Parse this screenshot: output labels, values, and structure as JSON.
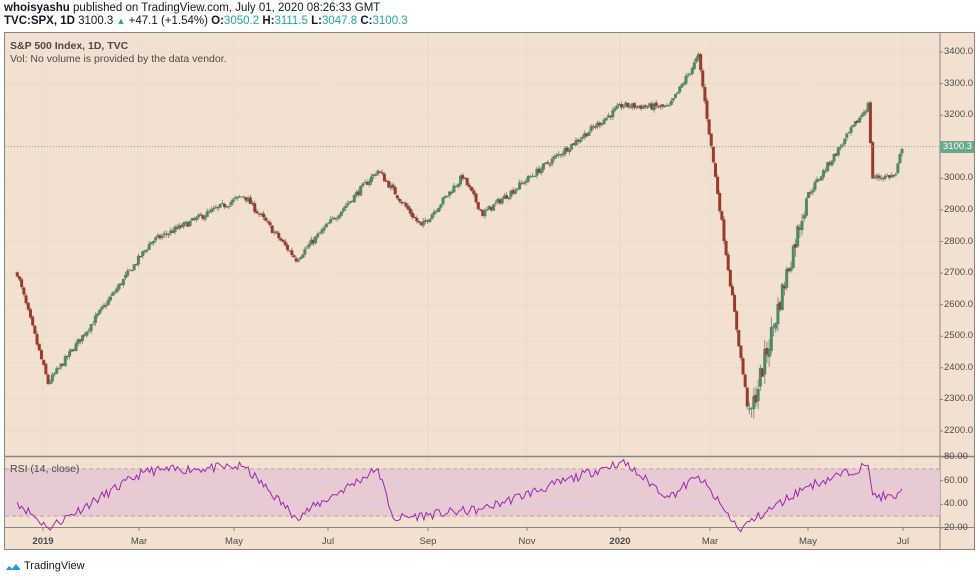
{
  "header": {
    "author": "whoisyashu",
    "published": "published on TradingView.com, July 01, 2020 08:26:33 GMT",
    "symbol": "TVC:SPX, 1D",
    "last": "3100.3",
    "change_arrow": "▲",
    "change": "+47.1 (+1.54%)",
    "o_label": "O:",
    "o": "3050.2",
    "h_label": "H:",
    "h": "3111.5",
    "l_label": "L:",
    "l": "3047.8",
    "c_label": "C:",
    "c": "3100.3"
  },
  "legend": {
    "title": "S&P 500 Index, 1D, TVC",
    "volume_note": "Vol: No volume is provided by the data vendor.",
    "rsi_label": "RSI (14, close)"
  },
  "last_price_label": "3100.3",
  "footer": {
    "brand": "TradingView"
  },
  "colors": {
    "background": "#f2e1d0",
    "up": "#4e8a63",
    "down": "#9c3a2a",
    "rsi_line": "#9c27b0",
    "rsi_band": "#e6c6d3",
    "last_price": "#6aa88a"
  },
  "chart_data": [
    {
      "type": "candlestick",
      "title": "S&P 500 Index, 1D, TVC",
      "symbol": "TVC:SPX",
      "interval": "1D",
      "xlabel": "",
      "ylabel": "",
      "ylim": [
        2170,
        3460
      ],
      "y_ticks": [
        "3400.0",
        "3300.0",
        "3200.0",
        "3100.0",
        "3000.0",
        "2900.0",
        "2800.0",
        "2700.0",
        "2600.0",
        "2500.0",
        "2400.0",
        "2300.0",
        "2200.0"
      ],
      "x_ticks": [
        "2019",
        "Mar",
        "May",
        "Jul",
        "Sep",
        "Nov",
        "2020",
        "Mar",
        "May",
        "Jul"
      ],
      "last_price": 3100.3,
      "grid": true,
      "key_points": [
        {
          "x": "2018-12-04",
          "close": 2700
        },
        {
          "x": "2018-12-24",
          "close": 2351
        },
        {
          "x": "2019-03-01",
          "close": 2800
        },
        {
          "x": "2019-04-30",
          "close": 2946
        },
        {
          "x": "2019-06-03",
          "close": 2744
        },
        {
          "x": "2019-07-26",
          "close": 3025
        },
        {
          "x": "2019-08-23",
          "close": 2847
        },
        {
          "x": "2019-09-19",
          "close": 3006
        },
        {
          "x": "2019-10-02",
          "close": 2887
        },
        {
          "x": "2019-12-31",
          "close": 3230
        },
        {
          "x": "2020-01-31",
          "close": 3225
        },
        {
          "x": "2020-02-19",
          "close": 3386
        },
        {
          "x": "2020-03-23",
          "close": 2237
        },
        {
          "x": "2020-04-29",
          "close": 2940
        },
        {
          "x": "2020-06-08",
          "close": 3232
        },
        {
          "x": "2020-06-11",
          "close": 3002
        },
        {
          "x": "2020-06-26",
          "close": 3009
        },
        {
          "x": "2020-06-30",
          "close": 3100.3
        }
      ]
    },
    {
      "type": "line",
      "title": "RSI (14, close)",
      "ylim": [
        15,
        82
      ],
      "y_ticks": [
        "80.00",
        "60.00",
        "40.00",
        "20.00"
      ],
      "bands": {
        "upper": 70,
        "lower": 30
      },
      "key_points": [
        {
          "x": "2018-12-04",
          "value": 42
        },
        {
          "x": "2018-12-24",
          "value": 20
        },
        {
          "x": "2019-02-25",
          "value": 68
        },
        {
          "x": "2019-04-30",
          "value": 72
        },
        {
          "x": "2019-06-03",
          "value": 29
        },
        {
          "x": "2019-07-26",
          "value": 70
        },
        {
          "x": "2019-08-05",
          "value": 28
        },
        {
          "x": "2019-10-02",
          "value": 36
        },
        {
          "x": "2019-12-31",
          "value": 76
        },
        {
          "x": "2020-01-31",
          "value": 46
        },
        {
          "x": "2020-02-19",
          "value": 64
        },
        {
          "x": "2020-03-16",
          "value": 19
        },
        {
          "x": "2020-04-29",
          "value": 55
        },
        {
          "x": "2020-06-08",
          "value": 73
        },
        {
          "x": "2020-06-11",
          "value": 48
        },
        {
          "x": "2020-06-26",
          "value": 45
        },
        {
          "x": "2020-06-30",
          "value": 53
        }
      ]
    }
  ]
}
